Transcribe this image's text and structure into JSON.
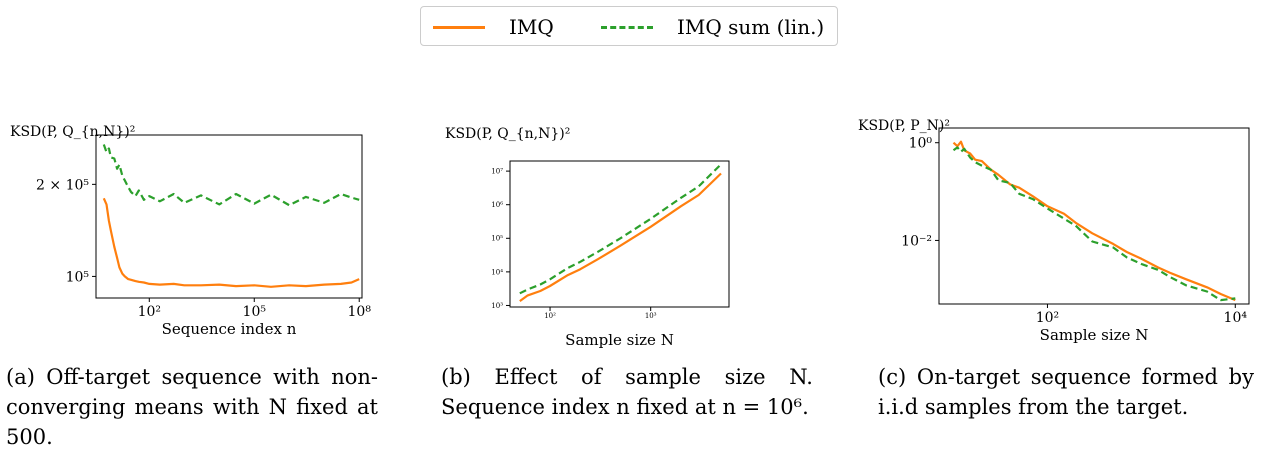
{
  "colors": {
    "imq": "#ff7f0e",
    "imq_sum": "#2ca02c",
    "axis": "#000000",
    "legend_border": "#cccccc"
  },
  "legend": {
    "imq": "IMQ",
    "imq_sum": "IMQ sum (lin.)"
  },
  "panels": {
    "a": {
      "ylabel": "KSD(P, Q_{n,N})²",
      "caption": "(a) Off-target sequence with non-converging means with N fixed at 500."
    },
    "b": {
      "ylabel": "KSD(P, Q_{n,N})²",
      "caption": "(b) Effect of sample size N. Sequence index n fixed at n = 10⁶."
    },
    "c": {
      "ylabel": "KSD(P, P_N)²",
      "caption": "(c) On-target sequence formed by i.i.d samples from the target."
    }
  },
  "chart_data": [
    {
      "type": "line",
      "id": "a",
      "xlabel": "Sequence index n",
      "ylabel": "KSD(P, Q_{n,N})²",
      "xscale": "log",
      "yscale": "log",
      "xlim": [
        3,
        120000000
      ],
      "ylim": [
        85000,
        290000
      ],
      "xticks": [
        {
          "value": 100,
          "label": "10²"
        },
        {
          "value": 100000,
          "label": "10⁵"
        },
        {
          "value": 100000000,
          "label": "10⁸"
        }
      ],
      "yticks": [
        {
          "value": 100000,
          "label": "10⁵"
        },
        {
          "value": 200000,
          "label": "2 × 10⁵"
        }
      ],
      "series": [
        {
          "name": "IMQ",
          "x": [
            5,
            6,
            7,
            8,
            10,
            12,
            14,
            17,
            20,
            25,
            30,
            40,
            50,
            70,
            100,
            200,
            500,
            1000,
            3000,
            10000,
            30000,
            100000,
            300000,
            1000000,
            3000000,
            10000000,
            30000000,
            60000000,
            100000000
          ],
          "y": [
            180000,
            172000,
            152000,
            141000,
            125000,
            115000,
            107000,
            102000,
            100000,
            98000,
            97500,
            96500,
            96000,
            95500,
            94500,
            94000,
            94500,
            93500,
            93500,
            94000,
            93000,
            93500,
            92500,
            93500,
            93000,
            94000,
            94500,
            95500,
            98000
          ]
        },
        {
          "name": "IMQ sum (lin.)",
          "x": [
            5,
            6,
            7,
            8,
            10,
            12,
            14,
            17,
            20,
            25,
            30,
            40,
            50,
            70,
            100,
            200,
            500,
            1000,
            3000,
            10000,
            30000,
            100000,
            300000,
            1000000,
            3000000,
            10000000,
            30000000,
            60000000,
            100000000
          ],
          "y": [
            270000,
            255000,
            262000,
            245000,
            243000,
            225000,
            232000,
            213000,
            206000,
            196000,
            189000,
            183000,
            191000,
            178000,
            183000,
            176000,
            186000,
            174000,
            184000,
            172000,
            186000,
            173000,
            185000,
            171000,
            182000,
            174000,
            186000,
            181000,
            178000
          ]
        }
      ]
    },
    {
      "type": "line",
      "id": "b",
      "xlabel": "Sample size N",
      "ylabel": "KSD(P, Q_{n,N})²",
      "xscale": "log",
      "yscale": "log",
      "xlim": [
        40,
        6000
      ],
      "ylim": [
        900,
        20000000
      ],
      "xticks": [
        {
          "value": 100,
          "label": "10²"
        },
        {
          "value": 1000,
          "label": "10³"
        }
      ],
      "yticks": [
        {
          "value": 1000,
          "label": "10³"
        },
        {
          "value": 10000,
          "label": "10⁴"
        },
        {
          "value": 100000,
          "label": "10⁵"
        },
        {
          "value": 1000000,
          "label": "10⁶"
        },
        {
          "value": 10000000,
          "label": "10⁷"
        }
      ],
      "series": [
        {
          "name": "IMQ",
          "x": [
            50,
            60,
            80,
            100,
            150,
            200,
            300,
            500,
            1000,
            2000,
            3000,
            5000
          ],
          "y": [
            1350,
            2000,
            2700,
            3800,
            8000,
            12000,
            24000,
            60000,
            220000,
            900000,
            1950000,
            8500000
          ]
        },
        {
          "name": "IMQ sum (lin.)",
          "x": [
            50,
            60,
            80,
            100,
            150,
            200,
            300,
            500,
            1000,
            2000,
            3000,
            5000
          ],
          "y": [
            2300,
            3000,
            4200,
            6000,
            13000,
            20000,
            40000,
            100000,
            380000,
            1600000,
            3500000,
            16000000
          ]
        }
      ]
    },
    {
      "type": "line",
      "id": "c",
      "xlabel": "Sample size N",
      "ylabel": "KSD(P, P_N)²",
      "xscale": "log",
      "yscale": "log",
      "xlim": [
        7,
        14000
      ],
      "ylim": [
        0.0005,
        2.0
      ],
      "xticks": [
        {
          "value": 100,
          "label": "10²"
        },
        {
          "value": 10000,
          "label": "10⁴"
        }
      ],
      "yticks": [
        {
          "value": 0.01,
          "label": "10⁻²"
        },
        {
          "value": 1,
          "label": "10⁰"
        }
      ],
      "series": [
        {
          "name": "IMQ",
          "x": [
            10,
            11,
            12,
            13,
            15,
            17,
            20,
            25,
            30,
            40,
            50,
            70,
            100,
            150,
            200,
            300,
            500,
            700,
            1000,
            1500,
            2000,
            3000,
            5000,
            7000,
            10000
          ],
          "y": [
            1.0,
            0.85,
            1.05,
            0.7,
            0.6,
            0.45,
            0.42,
            0.28,
            0.22,
            0.14,
            0.12,
            0.08,
            0.05,
            0.035,
            0.023,
            0.014,
            0.0085,
            0.0058,
            0.0042,
            0.0028,
            0.0022,
            0.0016,
            0.0011,
            0.0008,
            0.0006
          ]
        },
        {
          "name": "IMQ sum (lin.)",
          "x": [
            10,
            11,
            12,
            13,
            15,
            17,
            20,
            25,
            30,
            40,
            50,
            70,
            100,
            150,
            200,
            300,
            500,
            700,
            1000,
            1500,
            2000,
            3000,
            5000,
            7000,
            10000
          ],
          "y": [
            0.7,
            0.8,
            0.65,
            0.75,
            0.5,
            0.4,
            0.34,
            0.28,
            0.17,
            0.15,
            0.09,
            0.07,
            0.045,
            0.028,
            0.02,
            0.0095,
            0.0072,
            0.0045,
            0.0033,
            0.0025,
            0.0018,
            0.0012,
            0.0009,
            0.0006,
            0.00065
          ]
        }
      ]
    }
  ]
}
